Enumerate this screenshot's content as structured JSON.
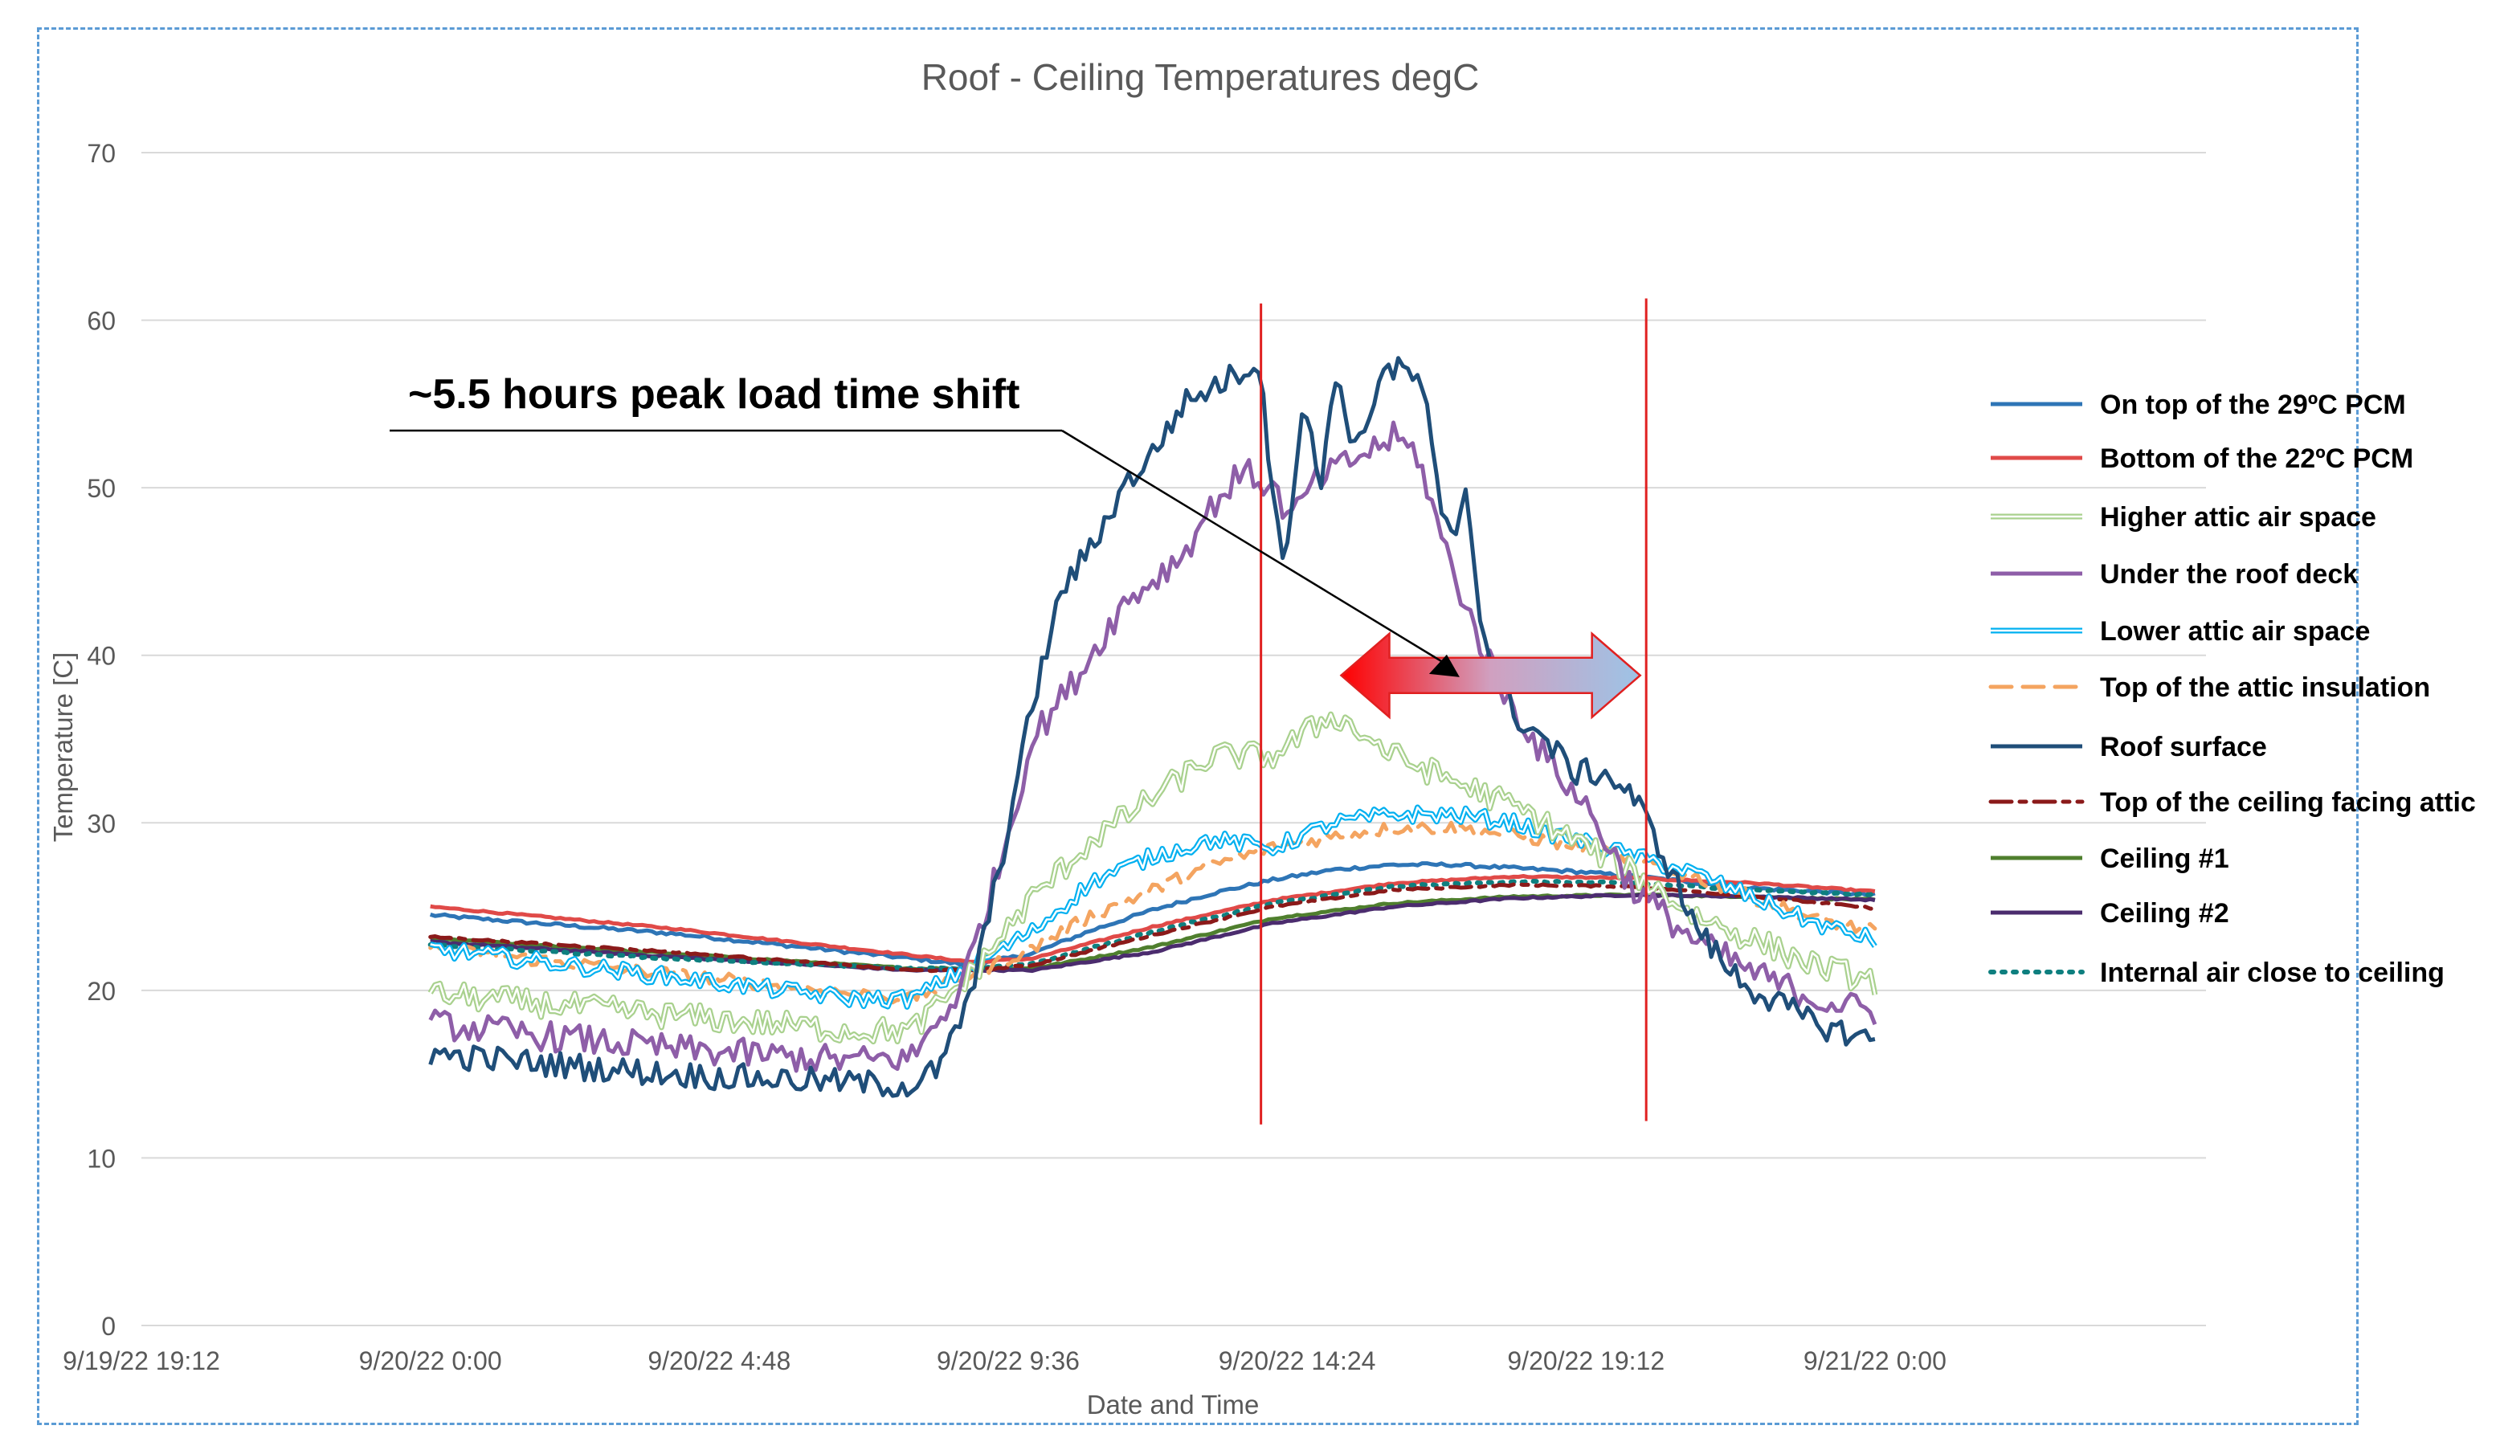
{
  "chart_data": {
    "type": "line",
    "title": "Roof - Ceiling Temperatures degC",
    "xlabel": "Date and Time",
    "ylabel": "Temperature [C]",
    "ylim": [
      0,
      70
    ],
    "yticks": [
      0,
      10,
      20,
      30,
      40,
      50,
      60,
      70
    ],
    "xlim": [
      -4.8,
      29.5
    ],
    "xticks": [
      {
        "value": -4.8,
        "label": "9/19/22 19:12"
      },
      {
        "value": 0,
        "label": "9/20/22 0:00"
      },
      {
        "value": 4.8,
        "label": "9/20/22 4:48"
      },
      {
        "value": 9.6,
        "label": "9/20/22 9:36"
      },
      {
        "value": 14.4,
        "label": "9/20/22 14:24"
      },
      {
        "value": 19.2,
        "label": "9/20/22 19:12"
      },
      {
        "value": 24,
        "label": "9/21/22 0:00"
      }
    ],
    "grid": true,
    "legend_position": "right",
    "series": [
      {
        "name": "On top of the 29ºC PCM",
        "color": "#2e75b6",
        "dash": "solid",
        "noise": 0.1,
        "points": [
          [
            0,
            24.5
          ],
          [
            4,
            23.4
          ],
          [
            8,
            21.9
          ],
          [
            9,
            21.5
          ],
          [
            10,
            22.2
          ],
          [
            11,
            23.6
          ],
          [
            12,
            24.8
          ],
          [
            13,
            25.8
          ],
          [
            14,
            26.6
          ],
          [
            15,
            27.2
          ],
          [
            16,
            27.5
          ],
          [
            17,
            27.5
          ],
          [
            18,
            27.3
          ],
          [
            19,
            27.1
          ],
          [
            20,
            26.8
          ],
          [
            22,
            26.1
          ],
          [
            24,
            25.7
          ]
        ]
      },
      {
        "name": "Bottom of the 22ºC PCM",
        "color": "#e04a48",
        "dash": "solid",
        "noise": 0.05,
        "points": [
          [
            0,
            25
          ],
          [
            4,
            23.7
          ],
          [
            8,
            22.1
          ],
          [
            9,
            21.7
          ],
          [
            10,
            21.9
          ],
          [
            12,
            23.8
          ],
          [
            14,
            25.4
          ],
          [
            16,
            26.4
          ],
          [
            18,
            26.8
          ],
          [
            20,
            26.7
          ],
          [
            22,
            26.4
          ],
          [
            24,
            25.9
          ]
        ]
      },
      {
        "name": "Higher attic air space",
        "color": "#a9d18e",
        "dash": "solid",
        "noise": 0.8,
        "points": [
          [
            0,
            19.8
          ],
          [
            4,
            18.5
          ],
          [
            7,
            17.6
          ],
          [
            8,
            17.6
          ],
          [
            9,
            21
          ],
          [
            10,
            25.5
          ],
          [
            11,
            29
          ],
          [
            12,
            31.5
          ],
          [
            13,
            34
          ],
          [
            14,
            34
          ],
          [
            15,
            36.5
          ],
          [
            16,
            34
          ],
          [
            17,
            32.5
          ],
          [
            18,
            31
          ],
          [
            19,
            29
          ],
          [
            20,
            27
          ],
          [
            21,
            24.5
          ],
          [
            22,
            23
          ],
          [
            23,
            21.5
          ],
          [
            24,
            20.5
          ]
        ]
      },
      {
        "name": "Under the roof deck",
        "color": "#8e5ea8",
        "dash": "solid",
        "noise": 0.9,
        "points": [
          [
            0,
            18
          ],
          [
            4,
            16.5
          ],
          [
            7,
            15.8
          ],
          [
            8,
            16
          ],
          [
            8.8,
            20
          ],
          [
            9.5,
            28
          ],
          [
            10,
            35
          ],
          [
            10.8,
            39
          ],
          [
            11.5,
            43
          ],
          [
            12.5,
            46
          ],
          [
            13,
            49
          ],
          [
            13.5,
            51
          ],
          [
            14,
            50
          ],
          [
            14.3,
            48
          ],
          [
            14.6,
            50
          ],
          [
            15,
            51
          ],
          [
            15.5,
            52
          ],
          [
            16,
            53
          ],
          [
            16.4,
            52
          ],
          [
            16.8,
            47
          ],
          [
            17.3,
            42
          ],
          [
            17.8,
            38
          ],
          [
            18.5,
            34
          ],
          [
            19.2,
            31
          ],
          [
            20,
            26
          ],
          [
            21,
            23
          ],
          [
            22,
            21
          ],
          [
            23,
            19.5
          ],
          [
            24,
            18.7
          ]
        ]
      },
      {
        "name": "Lower attic air space",
        "color": "#00b0f0",
        "dash": "solid",
        "noise": 0.5,
        "points": [
          [
            0,
            22.5
          ],
          [
            4,
            20.8
          ],
          [
            7,
            19.5
          ],
          [
            8,
            19.5
          ],
          [
            9,
            21.5
          ],
          [
            10,
            23.5
          ],
          [
            11,
            26.5
          ],
          [
            12,
            28
          ],
          [
            13,
            29
          ],
          [
            14,
            28.5
          ],
          [
            15,
            30
          ],
          [
            16,
            30.5
          ],
          [
            17,
            30.5
          ],
          [
            18,
            30
          ],
          [
            19,
            29
          ],
          [
            20,
            28
          ],
          [
            21,
            27
          ],
          [
            22,
            25.5
          ],
          [
            23,
            24
          ],
          [
            24,
            23
          ]
        ]
      },
      {
        "name": "Top of the attic insulation",
        "color": "#f4a460",
        "dash": "26,14",
        "noise": 0.4,
        "points": [
          [
            0,
            22.5
          ],
          [
            4,
            21
          ],
          [
            7,
            19.8
          ],
          [
            8,
            19.5
          ],
          [
            9,
            21
          ],
          [
            10,
            22.5
          ],
          [
            11,
            24.5
          ],
          [
            12,
            26
          ],
          [
            13,
            27.5
          ],
          [
            14,
            28.5
          ],
          [
            15,
            29.2
          ],
          [
            16,
            29.7
          ],
          [
            17,
            29.7
          ],
          [
            18,
            29.3
          ],
          [
            19,
            28.6
          ],
          [
            20,
            27.8
          ],
          [
            21,
            26.8
          ],
          [
            22,
            25.5
          ],
          [
            23,
            24.3
          ],
          [
            24,
            23.5
          ]
        ]
      },
      {
        "name": "Roof surface",
        "color": "#1f4e79",
        "dash": "solid",
        "noise": 0.8,
        "points": [
          [
            0,
            16.2
          ],
          [
            4,
            15
          ],
          [
            7,
            14.5
          ],
          [
            8,
            14.3
          ],
          [
            8.5,
            15.5
          ],
          [
            9,
            20
          ],
          [
            9.5,
            28
          ],
          [
            10,
            37
          ],
          [
            10.5,
            44
          ],
          [
            11,
            46.5
          ],
          [
            11.5,
            50
          ],
          [
            12,
            52
          ],
          [
            12.5,
            55
          ],
          [
            13,
            56
          ],
          [
            13.5,
            57
          ],
          [
            13.8,
            57.5
          ],
          [
            14,
            49
          ],
          [
            14.2,
            46
          ],
          [
            14.5,
            55
          ],
          [
            14.8,
            50
          ],
          [
            15,
            57
          ],
          [
            15.4,
            52
          ],
          [
            15.8,
            57
          ],
          [
            16.2,
            57
          ],
          [
            16.5,
            56
          ],
          [
            16.8,
            48
          ],
          [
            17,
            47
          ],
          [
            17.2,
            50
          ],
          [
            17.5,
            41
          ],
          [
            18,
            36.5
          ],
          [
            18.5,
            35
          ],
          [
            19,
            33
          ],
          [
            19.5,
            33
          ],
          [
            20,
            31.5
          ],
          [
            20.5,
            28
          ],
          [
            21,
            24
          ],
          [
            21.5,
            21.5
          ],
          [
            22,
            20
          ],
          [
            23,
            18
          ],
          [
            24,
            17
          ]
        ]
      },
      {
        "name": "Top of the ceiling facing attic",
        "color": "#8b1a1a",
        "dash": "26,10,8,10",
        "noise": 0.05,
        "points": [
          [
            0,
            23.2
          ],
          [
            4,
            22.3
          ],
          [
            8,
            21.2
          ],
          [
            9,
            21.2
          ],
          [
            10,
            21.5
          ],
          [
            12,
            23.3
          ],
          [
            14,
            25
          ],
          [
            16,
            26
          ],
          [
            18,
            26.3
          ],
          [
            20,
            26.2
          ],
          [
            22,
            25.6
          ],
          [
            24,
            24.9
          ]
        ]
      },
      {
        "name": "Ceiling #1",
        "color": "#4f7f2e",
        "dash": "solid",
        "noise": 0.05,
        "points": [
          [
            0,
            23.1
          ],
          [
            4,
            22.2
          ],
          [
            8,
            21.3
          ],
          [
            9,
            21.3
          ],
          [
            10,
            21.3
          ],
          [
            12,
            22.6
          ],
          [
            14,
            24.3
          ],
          [
            16,
            25.2
          ],
          [
            18,
            25.6
          ],
          [
            20,
            25.7
          ],
          [
            22,
            25.6
          ],
          [
            24,
            25.4
          ]
        ]
      },
      {
        "name": "Ceiling #2",
        "color": "#4b2c6e",
        "dash": "solid",
        "noise": 0.05,
        "points": [
          [
            0,
            22.9
          ],
          [
            4,
            22
          ],
          [
            8,
            21.2
          ],
          [
            9,
            21.2
          ],
          [
            10,
            21.2
          ],
          [
            12,
            22.3
          ],
          [
            14,
            24
          ],
          [
            16,
            25
          ],
          [
            18,
            25.5
          ],
          [
            20,
            25.7
          ],
          [
            22,
            25.6
          ],
          [
            24,
            25.4
          ]
        ]
      },
      {
        "name": "Internal air close to ceiling",
        "color": "#0e7f7f",
        "dash": "4,10",
        "noise": 0.05,
        "points": [
          [
            0,
            22.7
          ],
          [
            4,
            21.9
          ],
          [
            8,
            21.3
          ],
          [
            9,
            21.3
          ],
          [
            10,
            21.6
          ],
          [
            12,
            23.5
          ],
          [
            14,
            25.2
          ],
          [
            16,
            26.2
          ],
          [
            18,
            26.5
          ],
          [
            20,
            26.4
          ],
          [
            22,
            26
          ],
          [
            24,
            25.7
          ]
        ]
      }
    ],
    "vertical_lines": [
      {
        "x": 13.8,
        "y_top": 61,
        "y_bottom": 12,
        "color": "#e02020"
      },
      {
        "x": 20.2,
        "y_top": 61.3,
        "y_bottom": 12.2,
        "color": "#e02020"
      }
    ],
    "annotation": {
      "text": "~5.5 hours peak load time shift",
      "arrow_start": {
        "x": 15.8,
        "y": 38.8
      },
      "arrow_end": {
        "x": 20.1,
        "y": 38.8
      },
      "pointer_tip": {
        "x": 17.1,
        "y": 38.7
      }
    }
  }
}
